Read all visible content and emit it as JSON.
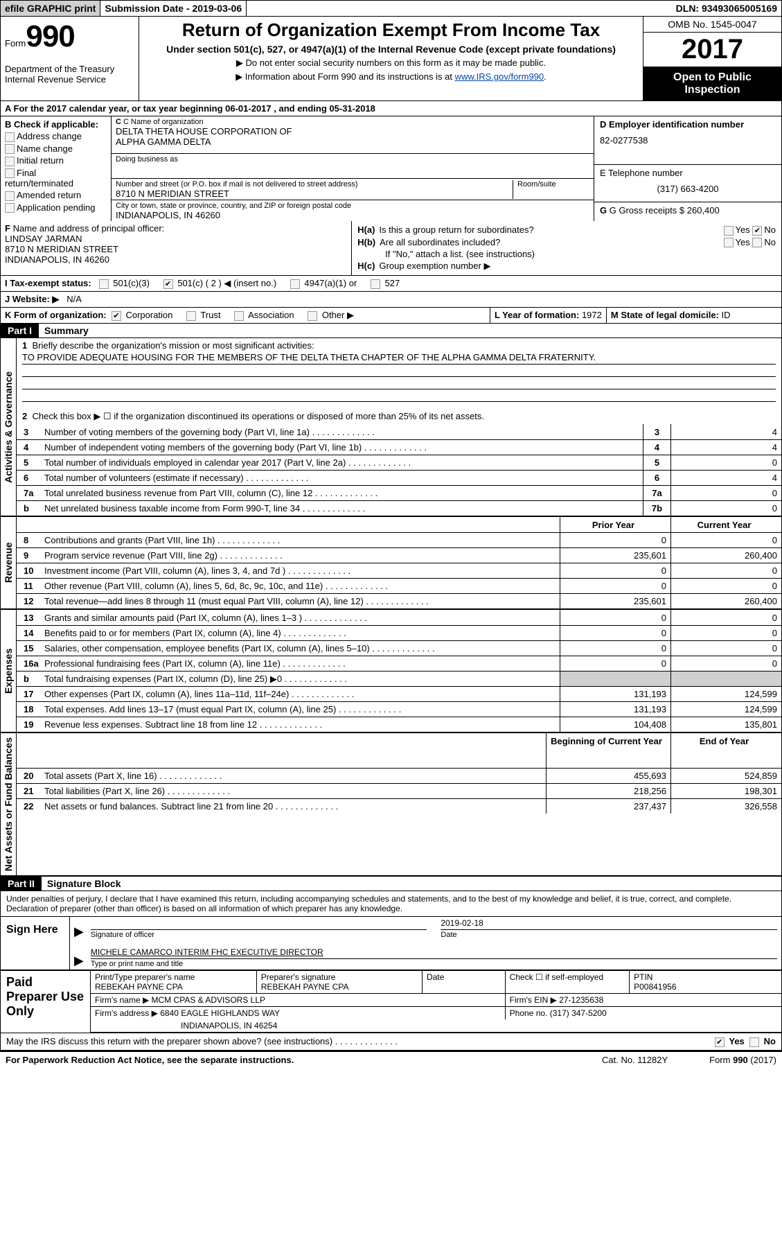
{
  "top": {
    "efile": "efile GRAPHIC print",
    "submission": "Submission Date - 2019-03-06",
    "dln": "DLN: 93493065005169"
  },
  "header": {
    "form_word": "Form",
    "form_num": "990",
    "dept1": "Department of the Treasury",
    "dept2": "Internal Revenue Service",
    "title": "Return of Organization Exempt From Income Tax",
    "subtitle": "Under section 501(c), 527, or 4947(a)(1) of the Internal Revenue Code (except private foundations)",
    "note1": "▶ Do not enter social security numbers on this form as it may be made public.",
    "note2_pre": "▶ Information about Form 990 and its instructions is at ",
    "note2_link": "www.IRS.gov/form990",
    "omb": "OMB No. 1545-0047",
    "year": "2017",
    "open": "Open to Public Inspection"
  },
  "sectA": "A  For the 2017 calendar year, or tax year beginning 06-01-2017   , and ending 05-31-2018",
  "sectB": {
    "label": "B Check if applicable:",
    "opts": [
      "Address change",
      "Name change",
      "Initial return",
      "Final return/terminated",
      "Amended return",
      "Application pending"
    ]
  },
  "sectC": {
    "name_lbl": "C Name of organization",
    "name1": "DELTA THETA HOUSE CORPORATION OF",
    "name2": "ALPHA GAMMA DELTA",
    "dba_lbl": "Doing business as",
    "addr_lbl": "Number and street (or P.O. box if mail is not delivered to street address)",
    "room_lbl": "Room/suite",
    "addr": "8710 N MERIDIAN STREET",
    "city_lbl": "City or town, state or province, country, and ZIP or foreign postal code",
    "city": "INDIANAPOLIS, IN  46260"
  },
  "sectD": {
    "ein_lbl": "D Employer identification number",
    "ein": "82-0277538",
    "tel_lbl": "E Telephone number",
    "tel": "(317) 663-4200",
    "gross_lbl": "G Gross receipts $",
    "gross": "260,400"
  },
  "sectF": {
    "lbl": "F  Name and address of principal officer:",
    "name": "LINDSAY JARMAN",
    "addr": "8710 N MERIDIAN STREET",
    "city": "INDIANAPOLIS, IN  46260"
  },
  "sectH": {
    "ha": "Is this a group return for subordinates?",
    "hb": "Are all subordinates included?",
    "hb_note": "If \"No,\" attach a list. (see instructions)",
    "hc": "Group exemption number ▶",
    "yes": "Yes",
    "no": "No"
  },
  "sectI": {
    "lbl": "I  Tax-exempt status:",
    "o1": "501(c)(3)",
    "o2": "501(c) ( 2 ) ◀ (insert no.)",
    "o3": "4947(a)(1) or",
    "o4": "527"
  },
  "sectJ": {
    "lbl": "J  Website: ▶",
    "val": "N/A"
  },
  "sectK": {
    "lbl": "K Form of organization:",
    "opts": [
      "Corporation",
      "Trust",
      "Association",
      "Other ▶"
    ]
  },
  "sectL": {
    "lbl": "L Year of formation:",
    "val": "1972"
  },
  "sectM": {
    "lbl": "M State of legal domicile:",
    "val": "ID"
  },
  "partI": {
    "num": "Part I",
    "title": "Summary",
    "gov_label": "Activities & Governance",
    "rev_label": "Revenue",
    "exp_label": "Expenses",
    "net_label": "Net Assets or Fund Balances",
    "l1": "Briefly describe the organization's mission or most significant activities:",
    "mission": "TO PROVIDE ADEQUATE HOUSING FOR THE MEMBERS OF THE DELTA THETA CHAPTER OF THE ALPHA GAMMA DELTA FRATERNITY.",
    "l2": "Check this box ▶ ☐  if the organization discontinued its operations or disposed of more than 25% of its net assets.",
    "rows_gov": [
      {
        "n": "3",
        "d": "Number of voting members of the governing body (Part VI, line 1a)",
        "box": "3",
        "v": "4"
      },
      {
        "n": "4",
        "d": "Number of independent voting members of the governing body (Part VI, line 1b)",
        "box": "4",
        "v": "4"
      },
      {
        "n": "5",
        "d": "Total number of individuals employed in calendar year 2017 (Part V, line 2a)",
        "box": "5",
        "v": "0"
      },
      {
        "n": "6",
        "d": "Total number of volunteers (estimate if necessary)",
        "box": "6",
        "v": "4"
      },
      {
        "n": "7a",
        "d": "Total unrelated business revenue from Part VIII, column (C), line 12",
        "box": "7a",
        "v": "0"
      },
      {
        "n": "b",
        "d": "Net unrelated business taxable income from Form 990-T, line 34",
        "box": "7b",
        "v": "0"
      }
    ],
    "head_prior": "Prior Year",
    "head_curr": "Current Year",
    "rows_rev": [
      {
        "n": "8",
        "d": "Contributions and grants (Part VIII, line 1h)",
        "p": "0",
        "c": "0"
      },
      {
        "n": "9",
        "d": "Program service revenue (Part VIII, line 2g)",
        "p": "235,601",
        "c": "260,400"
      },
      {
        "n": "10",
        "d": "Investment income (Part VIII, column (A), lines 3, 4, and 7d )",
        "p": "0",
        "c": "0"
      },
      {
        "n": "11",
        "d": "Other revenue (Part VIII, column (A), lines 5, 6d, 8c, 9c, 10c, and 11e)",
        "p": "0",
        "c": "0"
      },
      {
        "n": "12",
        "d": "Total revenue—add lines 8 through 11 (must equal Part VIII, column (A), line 12)",
        "p": "235,601",
        "c": "260,400"
      }
    ],
    "rows_exp": [
      {
        "n": "13",
        "d": "Grants and similar amounts paid (Part IX, column (A), lines 1–3 )",
        "p": "0",
        "c": "0"
      },
      {
        "n": "14",
        "d": "Benefits paid to or for members (Part IX, column (A), line 4)",
        "p": "0",
        "c": "0"
      },
      {
        "n": "15",
        "d": "Salaries, other compensation, employee benefits (Part IX, column (A), lines 5–10)",
        "p": "0",
        "c": "0"
      },
      {
        "n": "16a",
        "d": "Professional fundraising fees (Part IX, column (A), line 11e)",
        "p": "0",
        "c": "0"
      },
      {
        "n": "b",
        "d": "Total fundraising expenses (Part IX, column (D), line 25) ▶0",
        "p": "grey",
        "c": "grey"
      },
      {
        "n": "17",
        "d": "Other expenses (Part IX, column (A), lines 11a–11d, 11f–24e)",
        "p": "131,193",
        "c": "124,599"
      },
      {
        "n": "18",
        "d": "Total expenses. Add lines 13–17 (must equal Part IX, column (A), line 25)",
        "p": "131,193",
        "c": "124,599"
      },
      {
        "n": "19",
        "d": "Revenue less expenses. Subtract line 18 from line 12",
        "p": "104,408",
        "c": "135,801"
      }
    ],
    "head_begin": "Beginning of Current Year",
    "head_end": "End of Year",
    "rows_net": [
      {
        "n": "20",
        "d": "Total assets (Part X, line 16)",
        "p": "455,693",
        "c": "524,859"
      },
      {
        "n": "21",
        "d": "Total liabilities (Part X, line 26)",
        "p": "218,256",
        "c": "198,301"
      },
      {
        "n": "22",
        "d": "Net assets or fund balances. Subtract line 21 from line 20",
        "p": "237,437",
        "c": "326,558"
      }
    ]
  },
  "partII": {
    "num": "Part II",
    "title": "Signature Block",
    "intro": "Under penalties of perjury, I declare that I have examined this return, including accompanying schedules and statements, and to the best of my knowledge and belief, it is true, correct, and complete. Declaration of preparer (other than officer) is based on all information of which preparer has any knowledge.",
    "sign_here": "Sign Here",
    "sig_lbl": "Signature of officer",
    "date_lbl": "Date",
    "date": "2019-02-18",
    "name_title": "MICHELE CAMARCO INTERIM FHC EXECUTIVE DIRECTOR",
    "name_lbl": "Type or print name and title",
    "paid": "Paid Preparer Use Only",
    "prep_name_lbl": "Print/Type preparer's name",
    "prep_name": "REBEKAH PAYNE CPA",
    "prep_sig_lbl": "Preparer's signature",
    "prep_sig": "REBEKAH PAYNE CPA",
    "prep_date_lbl": "Date",
    "check_lbl": "Check ☐ if self-employed",
    "ptin_lbl": "PTIN",
    "ptin": "P00841956",
    "firm_name_lbl": "Firm's name      ▶",
    "firm_name": "MCM CPAS & ADVISORS LLP",
    "firm_ein_lbl": "Firm's EIN ▶",
    "firm_ein": "27-1235638",
    "firm_addr_lbl": "Firm's address ▶",
    "firm_addr1": "6840 EAGLE HIGHLANDS WAY",
    "firm_addr2": "INDIANAPOLIS, IN  46254",
    "phone_lbl": "Phone no.",
    "phone": "(317) 347-5200",
    "discuss": "May the IRS discuss this return with the preparer shown above? (see instructions)",
    "yes": "Yes",
    "no": "No"
  },
  "footer": {
    "left": "For Paperwork Reduction Act Notice, see the separate instructions.",
    "mid": "Cat. No. 11282Y",
    "right": "Form 990 (2017)"
  }
}
